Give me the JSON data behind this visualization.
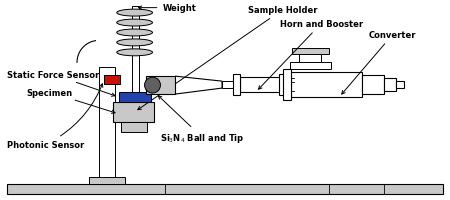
{
  "bg_color": "#ffffff",
  "gray_light": "#c8c8c8",
  "gray_med": "#a0a0a0",
  "gray_dark": "#606060",
  "blue_color": "#2244aa",
  "red_color": "#cc1100",
  "lc": "#000000",
  "labels": {
    "weight": "Weight",
    "static_force": "Static Force Sensor",
    "specimen": "Specimen",
    "photonic": "Photonic Sensor",
    "si3n4": "Si$_3$N$_4$ Ball and Tip",
    "sample_holder": "Sample Holder",
    "horn_booster": "Horn and Booster",
    "converter": "Converter"
  }
}
